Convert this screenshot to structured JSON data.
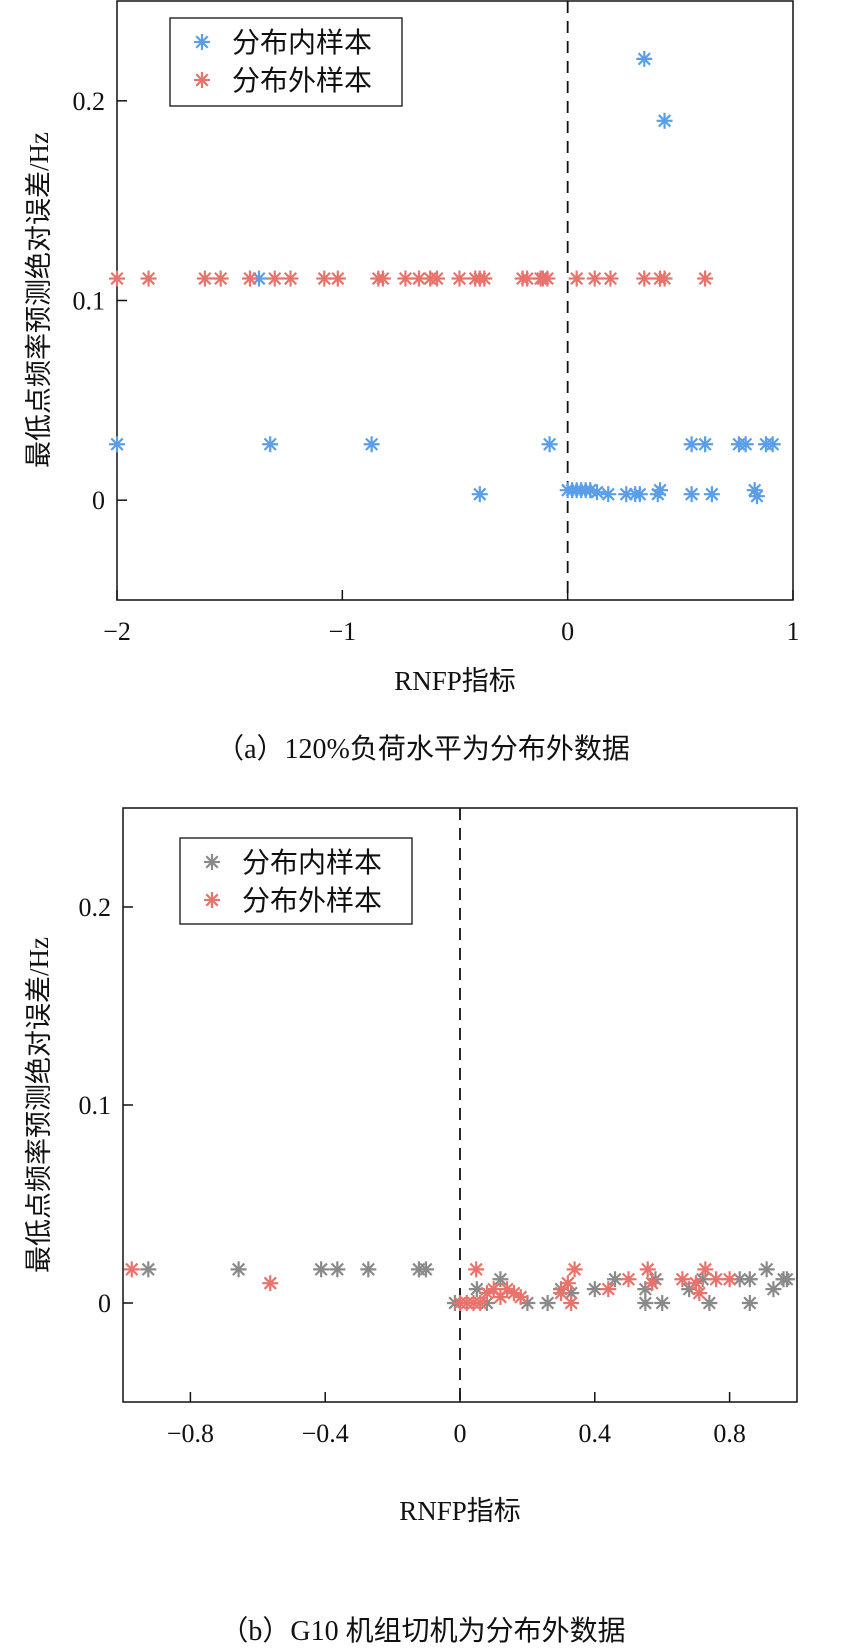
{
  "chart_data": [
    {
      "type": "scatter",
      "caption": "（a）120%负荷水平为分布外数据",
      "xlabel": "RNFP指标",
      "ylabel": "最低点频率预测绝对误差/Hz",
      "xlim": [
        -2,
        1
      ],
      "ylim": [
        -0.05,
        0.25
      ],
      "xticks": [
        -2,
        -1,
        0,
        1
      ],
      "xtick_labels": [
        "−2",
        "−1",
        "0",
        "1"
      ],
      "yticks": [
        0,
        0.1,
        0.2
      ],
      "ytick_labels": [
        "0",
        "0.1",
        "0.2"
      ],
      "vline_x": 0,
      "grid": false,
      "legend_placement": "top-left",
      "marker": "asterisk",
      "series": [
        {
          "name": "分布内样本",
          "color": "#5b9ee8",
          "points": [
            [
              0.34,
              0.221
            ],
            [
              0.43,
              0.19
            ],
            [
              -1.37,
              0.111
            ],
            [
              -2.0,
              0.028
            ],
            [
              -1.32,
              0.028
            ],
            [
              -0.87,
              0.028
            ],
            [
              -0.08,
              0.028
            ],
            [
              0.55,
              0.028
            ],
            [
              0.61,
              0.028
            ],
            [
              0.76,
              0.028
            ],
            [
              0.79,
              0.028
            ],
            [
              0.88,
              0.028
            ],
            [
              0.91,
              0.028
            ],
            [
              -0.39,
              0.003
            ],
            [
              0.0,
              0.005
            ],
            [
              0.02,
              0.005
            ],
            [
              0.04,
              0.005
            ],
            [
              0.06,
              0.005
            ],
            [
              0.08,
              0.005
            ],
            [
              0.1,
              0.005
            ],
            [
              0.13,
              0.004
            ],
            [
              0.18,
              0.003
            ],
            [
              0.26,
              0.003
            ],
            [
              0.3,
              0.003
            ],
            [
              0.32,
              0.003
            ],
            [
              0.4,
              0.003
            ],
            [
              0.41,
              0.005
            ],
            [
              0.55,
              0.003
            ],
            [
              0.64,
              0.003
            ],
            [
              0.83,
              0.005
            ],
            [
              0.84,
              0.002
            ]
          ]
        },
        {
          "name": "分布外样本",
          "color": "#e8736c",
          "points": [
            [
              -2.0,
              0.111
            ],
            [
              -1.86,
              0.111
            ],
            [
              -1.61,
              0.111
            ],
            [
              -1.54,
              0.111
            ],
            [
              -1.41,
              0.111
            ],
            [
              -1.3,
              0.111
            ],
            [
              -1.23,
              0.111
            ],
            [
              -1.08,
              0.111
            ],
            [
              -1.02,
              0.111
            ],
            [
              -0.84,
              0.111
            ],
            [
              -0.82,
              0.111
            ],
            [
              -0.72,
              0.111
            ],
            [
              -0.66,
              0.111
            ],
            [
              -0.61,
              0.111
            ],
            [
              -0.58,
              0.111
            ],
            [
              -0.48,
              0.111
            ],
            [
              -0.41,
              0.111
            ],
            [
              -0.39,
              0.111
            ],
            [
              -0.37,
              0.111
            ],
            [
              -0.2,
              0.111
            ],
            [
              -0.18,
              0.111
            ],
            [
              -0.12,
              0.111
            ],
            [
              -0.11,
              0.111
            ],
            [
              -0.09,
              0.111
            ],
            [
              0.04,
              0.111
            ],
            [
              0.12,
              0.111
            ],
            [
              0.19,
              0.111
            ],
            [
              0.34,
              0.111
            ],
            [
              0.41,
              0.111
            ],
            [
              0.43,
              0.111
            ],
            [
              0.61,
              0.111
            ]
          ]
        }
      ]
    },
    {
      "type": "scatter",
      "caption": "（b）G10 机组切机为分布外数据",
      "xlabel": "RNFP指标",
      "ylabel": "最低点频率预测绝对误差/Hz",
      "xlim": [
        -1,
        1
      ],
      "ylim": [
        -0.05,
        0.25
      ],
      "xticks": [
        -0.8,
        -0.4,
        0,
        0.4,
        0.8
      ],
      "xtick_labels": [
        "−0.8",
        "−0.4",
        "0",
        "0.4",
        "0.8"
      ],
      "yticks": [
        0,
        0.1,
        0.2
      ],
      "ytick_labels": [
        "0",
        "0.1",
        "0.2"
      ],
      "vline_x": 0,
      "grid": false,
      "legend_placement": "top-left",
      "marker": "asterisk",
      "series": [
        {
          "name": "分布内样本",
          "color": "#8a8a8a",
          "points": [
            [
              -0.925,
              0.017
            ],
            [
              -0.657,
              0.017
            ],
            [
              -0.412,
              0.017
            ],
            [
              -0.364,
              0.017
            ],
            [
              -0.272,
              0.017
            ],
            [
              -0.122,
              0.017
            ],
            [
              -0.101,
              0.017
            ],
            [
              -0.015,
              0
            ],
            [
              0.05,
              0.007
            ],
            [
              0.08,
              0
            ],
            [
              0.12,
              0.012
            ],
            [
              0.2,
              0
            ],
            [
              0.26,
              0
            ],
            [
              0.3,
              0.007
            ],
            [
              0.33,
              0.005
            ],
            [
              0.4,
              0.007
            ],
            [
              0.46,
              0.012
            ],
            [
              0.55,
              0
            ],
            [
              0.55,
              0.007
            ],
            [
              0.58,
              0.012
            ],
            [
              0.6,
              0
            ],
            [
              0.68,
              0.007
            ],
            [
              0.72,
              0.012
            ],
            [
              0.74,
              0
            ],
            [
              0.83,
              0.012
            ],
            [
              0.86,
              0.012
            ],
            [
              0.86,
              0
            ],
            [
              0.91,
              0.017
            ],
            [
              0.93,
              0.007
            ],
            [
              0.96,
              0.012
            ],
            [
              0.97,
              0.012
            ]
          ]
        },
        {
          "name": "分布外样本",
          "color": "#e8736c",
          "points": [
            [
              -0.974,
              0.017
            ],
            [
              -0.563,
              0.01
            ],
            [
              0.048,
              0.017
            ],
            [
              0.0,
              0
            ],
            [
              0.02,
              0
            ],
            [
              0.04,
              0
            ],
            [
              0.06,
              0
            ],
            [
              0.08,
              0.005
            ],
            [
              0.1,
              0.007
            ],
            [
              0.12,
              0.003
            ],
            [
              0.14,
              0.007
            ],
            [
              0.16,
              0.005
            ],
            [
              0.18,
              0.003
            ],
            [
              0.3,
              0.005
            ],
            [
              0.32,
              0.01
            ],
            [
              0.33,
              0
            ],
            [
              0.34,
              0.017
            ],
            [
              0.44,
              0.007
            ],
            [
              0.5,
              0.012
            ],
            [
              0.557,
              0.017
            ],
            [
              0.57,
              0.01
            ],
            [
              0.66,
              0.012
            ],
            [
              0.7,
              0.01
            ],
            [
              0.71,
              0.005
            ],
            [
              0.728,
              0.017
            ],
            [
              0.76,
              0.012
            ],
            [
              0.8,
              0.012
            ]
          ]
        }
      ]
    }
  ]
}
